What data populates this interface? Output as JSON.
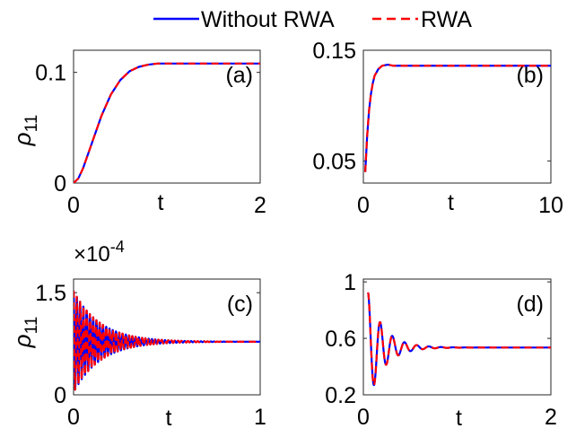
{
  "legend": {
    "entries": [
      {
        "label": "Without RWA",
        "color": "#0000ff",
        "style": "solid"
      },
      {
        "label": "RWA",
        "color": "#ff0000",
        "style": "dashed"
      }
    ],
    "placement": "top-center"
  },
  "chart_data": [
    {
      "type": "line",
      "panel_label": "(a)",
      "xlabel": "t",
      "ylabel": "ρ11",
      "xlim": [
        0,
        2
      ],
      "ylim": [
        0,
        0.12
      ],
      "xticks": [
        0,
        2
      ],
      "xtick_labels": [
        "0",
        "2"
      ],
      "yticks": [
        0,
        0.1
      ],
      "ytick_labels": [
        "0",
        "0.1"
      ],
      "series": [
        {
          "name": "Without RWA",
          "color": "#0000ff",
          "x": [
            0,
            0.05,
            0.1,
            0.2,
            0.3,
            0.4,
            0.5,
            0.6,
            0.7,
            0.8,
            0.9,
            1.0,
            1.2,
            1.5,
            2.0
          ],
          "y": [
            0,
            0.004,
            0.013,
            0.037,
            0.061,
            0.08,
            0.093,
            0.101,
            0.105,
            0.107,
            0.108,
            0.108,
            0.108,
            0.108,
            0.108
          ]
        },
        {
          "name": "RWA",
          "color": "#ff0000",
          "x": [
            0,
            0.05,
            0.1,
            0.2,
            0.3,
            0.4,
            0.5,
            0.6,
            0.7,
            0.8,
            0.9,
            1.0,
            1.2,
            1.5,
            2.0
          ],
          "y": [
            0,
            0.004,
            0.013,
            0.037,
            0.061,
            0.08,
            0.093,
            0.101,
            0.105,
            0.107,
            0.108,
            0.108,
            0.108,
            0.108,
            0.108
          ]
        }
      ]
    },
    {
      "type": "line",
      "panel_label": "(b)",
      "xlabel": "t",
      "ylabel": "",
      "xlim": [
        0,
        10
      ],
      "ylim": [
        0.03,
        0.15
      ],
      "xticks": [
        0,
        10
      ],
      "xtick_labels": [
        "0",
        "10"
      ],
      "yticks": [
        0.05,
        0.15
      ],
      "ytick_labels": [
        "0.05",
        "0.15"
      ],
      "series": [
        {
          "name": "Without RWA",
          "color": "#0000ff",
          "x": [
            0.1,
            0.2,
            0.3,
            0.4,
            0.5,
            0.6,
            0.8,
            1.0,
            1.3,
            1.6,
            2.0,
            3.0,
            5.0,
            7.0,
            10.0
          ],
          "y": [
            0.04,
            0.072,
            0.095,
            0.11,
            0.12,
            0.127,
            0.133,
            0.136,
            0.137,
            0.136,
            0.136,
            0.136,
            0.136,
            0.136,
            0.136
          ]
        },
        {
          "name": "RWA",
          "color": "#ff0000",
          "x": [
            0.1,
            0.2,
            0.3,
            0.4,
            0.5,
            0.6,
            0.8,
            1.0,
            1.3,
            1.6,
            2.0,
            3.0,
            5.0,
            7.0,
            10.0
          ],
          "y": [
            0.04,
            0.072,
            0.095,
            0.11,
            0.12,
            0.127,
            0.133,
            0.136,
            0.137,
            0.136,
            0.136,
            0.136,
            0.136,
            0.136,
            0.136
          ]
        }
      ]
    },
    {
      "type": "line",
      "panel_label": "(c)",
      "xlabel": "t",
      "ylabel": "ρ11",
      "multiplier": "×10",
      "multiplier_exponent": "-4",
      "xlim": [
        0,
        1
      ],
      "ylim": [
        0,
        1.7
      ],
      "xticks": [
        0,
        1
      ],
      "xtick_labels": [
        "0",
        "1"
      ],
      "yticks": [
        0,
        1.5
      ],
      "ytick_labels": [
        "0",
        "1.5"
      ],
      "oscillation": {
        "equilibrium": 0.78,
        "amplitude_start": 0.75,
        "decay_rate": 7,
        "period": 0.0175,
        "x_start": 0,
        "x_end": 1
      },
      "series": [
        {
          "name": "Without RWA",
          "color": "#0000ff"
        },
        {
          "name": "RWA",
          "color": "#ff0000"
        }
      ]
    },
    {
      "type": "line",
      "panel_label": "(d)",
      "xlabel": "t",
      "ylabel": "",
      "xlim": [
        0,
        2
      ],
      "ylim": [
        0.2,
        1.02
      ],
      "xticks": [
        0,
        2
      ],
      "xtick_labels": [
        "0",
        "2"
      ],
      "yticks": [
        0.2,
        0.6,
        1
      ],
      "ytick_labels": [
        "0.2",
        "0.6",
        "1"
      ],
      "oscillation": {
        "equilibrium": 0.535,
        "amplitude_start": 0.39,
        "decay_rate": 6,
        "period": 0.13,
        "x_start": 0.05,
        "x_end": 2
      },
      "series": [
        {
          "name": "Without RWA",
          "color": "#0000ff"
        },
        {
          "name": "RWA",
          "color": "#ff0000"
        }
      ]
    }
  ]
}
